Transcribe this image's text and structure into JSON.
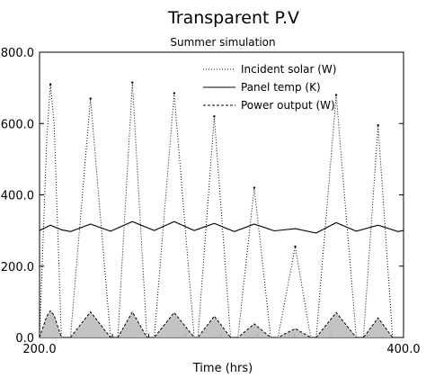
{
  "chart_data": {
    "type": "line",
    "title": "Transparent P.V",
    "subtitle": "Summer simulation",
    "xlabel": "Time (hrs)",
    "ylabel": "",
    "xlim": [
      200,
      400
    ],
    "ylim": [
      0,
      800
    ],
    "grid": false,
    "legend_position": "top-right",
    "x_tick_labels": [
      "200.0",
      "400.0"
    ],
    "y_tick_labels": [
      "0.0",
      "200.0",
      "400.0",
      "600.0",
      "800.0"
    ],
    "series": [
      {
        "name": "Incident solar (W)",
        "style": "dotted",
        "peaks": [
          {
            "x": 206.0,
            "y": 710
          },
          {
            "x": 228.0,
            "y": 670
          },
          {
            "x": 251.0,
            "y": 715
          },
          {
            "x": 274.0,
            "y": 685
          },
          {
            "x": 296.0,
            "y": 620
          },
          {
            "x": 318.0,
            "y": 420
          },
          {
            "x": 340.5,
            "y": 255
          },
          {
            "x": 363.0,
            "y": 680
          },
          {
            "x": 386.0,
            "y": 595
          }
        ],
        "x": [
          200,
          204,
          206,
          208,
          212,
          217,
          228,
          239,
          243,
          251,
          259,
          263,
          274,
          285,
          287,
          296,
          305,
          309,
          318,
          327,
          331,
          340.5,
          349,
          352,
          363,
          374,
          378,
          386,
          394,
          400
        ],
        "y": [
          0,
          560,
          710,
          600,
          0,
          0,
          670,
          0,
          0,
          715,
          0,
          0,
          685,
          0,
          0,
          620,
          0,
          0,
          420,
          0,
          0,
          255,
          0,
          0,
          680,
          0,
          0,
          595,
          0,
          0
        ]
      },
      {
        "name": "Panel temp (K)",
        "style": "solid",
        "x": [
          200,
          206,
          212,
          217,
          228,
          239,
          251,
          263,
          274,
          285,
          296,
          307,
          318,
          329,
          340.5,
          352,
          363,
          374,
          386,
          397,
          400
        ],
        "y": [
          300,
          315,
          302,
          297,
          318,
          298,
          325,
          300,
          325,
          300,
          320,
          297,
          318,
          299,
          305,
          293,
          322,
          298,
          315,
          297,
          300
        ]
      },
      {
        "name": "Power output (W)",
        "style": "dashed",
        "x": [
          200,
          204,
          206,
          208,
          212,
          217,
          228,
          239,
          243,
          251,
          259,
          263,
          274,
          285,
          287,
          296,
          305,
          309,
          318,
          327,
          331,
          340.5,
          349,
          352,
          363,
          374,
          378,
          386,
          394,
          400
        ],
        "y": [
          0,
          60,
          75,
          62,
          0,
          0,
          72,
          0,
          0,
          72,
          0,
          0,
          70,
          0,
          0,
          60,
          0,
          0,
          38,
          0,
          0,
          25,
          0,
          0,
          70,
          0,
          0,
          55,
          0,
          0
        ]
      }
    ]
  }
}
